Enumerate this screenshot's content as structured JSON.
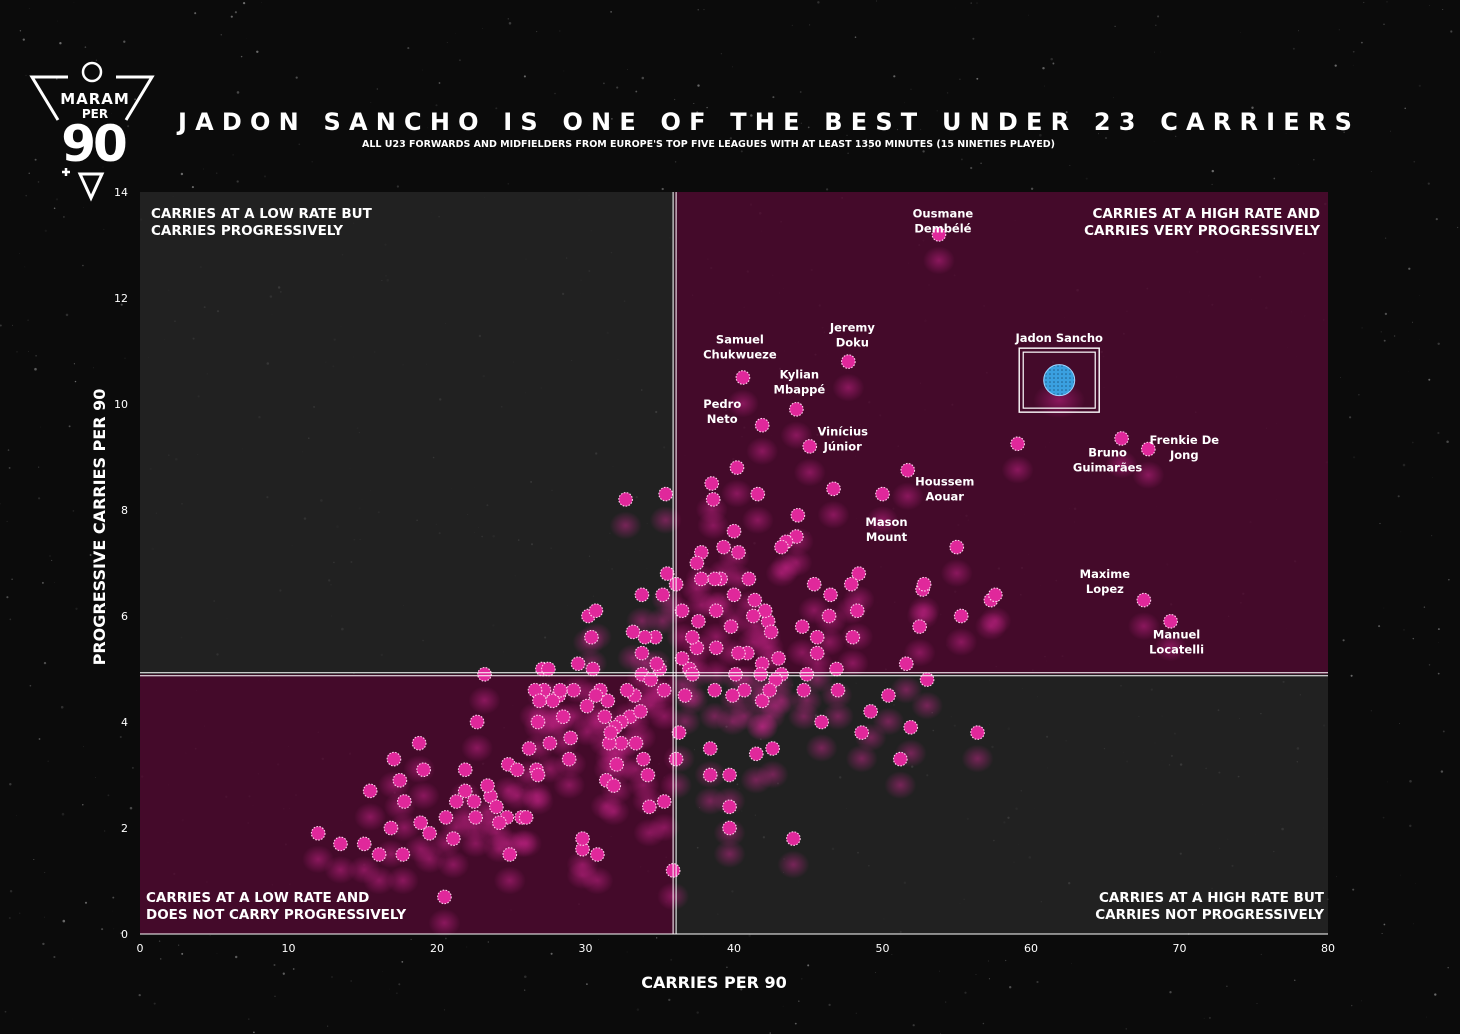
{
  "header": {
    "title": "JADON SANCHO IS ONE OF THE BEST UNDER 23 CARRIERS",
    "subtitle": "ALL U23 FORWARDS AND MIDFIELDERS FROM EUROPE'S TOP FIVE LEAGUES WITH AT LEAST 1350 MINUTES (15 NINETIES PLAYED)"
  },
  "logo": {
    "line1": "MARAM",
    "line2": "PER",
    "line3": "90"
  },
  "colors": {
    "background": "#0b0b0b",
    "quadrant_magenta": "#4a0a2e",
    "quadrant_grey": "#2a2a2a",
    "point_fill": "#e0289b",
    "highlight_fill": "#3aa0e0"
  },
  "chart_data": {
    "type": "scatter",
    "xlabel": "CARRIES PER 90",
    "ylabel": "PROGRESSIVE CARRIES PER 90",
    "xlim": [
      0,
      80
    ],
    "ylim": [
      0,
      14
    ],
    "xticks": [
      0,
      10,
      20,
      30,
      40,
      50,
      60,
      70,
      80
    ],
    "yticks": [
      0,
      2,
      4,
      6,
      8,
      10,
      12,
      14
    ],
    "reference_lines": {
      "x": 36,
      "y": 4.9
    },
    "grid": false,
    "quadrant_labels": {
      "top_left": [
        "CARRIES AT A LOW RATE BUT",
        "CARRIES PROGRESSIVELY"
      ],
      "top_right": [
        "CARRIES AT A HIGH RATE AND",
        "CARRIES VERY  PROGRESSIVELY"
      ],
      "bottom_left": [
        "CARRIES AT A LOW RATE AND",
        "DOES NOT CARRY PROGRESSIVELY"
      ],
      "bottom_right": [
        "CARRIES AT A HIGH RATE BUT",
        "CARRIES NOT PROGRESSIVELY"
      ]
    },
    "highlight": {
      "name": "Jadon Sancho",
      "x": 61.9,
      "y": 10.45
    },
    "labeled_points": [
      {
        "lines": [
          "Ousmane",
          "Dembélé"
        ],
        "x": 53.8,
        "y": 13.2
      },
      {
        "lines": [
          "Samuel",
          "Chukwueze"
        ],
        "x": 40.6,
        "y": 10.5
      },
      {
        "lines": [
          "Jeremy",
          "Doku"
        ],
        "x": 47.7,
        "y": 10.8
      },
      {
        "lines": [
          "Kylian",
          "Mbappé"
        ],
        "x": 44.2,
        "y": 9.9
      },
      {
        "lines": [
          "Pedro",
          "Neto"
        ],
        "x": 41.9,
        "y": 9.6
      },
      {
        "lines": [
          "Vinícius",
          "Júnior"
        ],
        "x": 45.1,
        "y": 9.2
      },
      {
        "lines": [
          "Frenkie De",
          "Jong"
        ],
        "x": 67.9,
        "y": 9.15
      },
      {
        "lines": [
          "Bruno",
          "Guimarães"
        ],
        "x": 66.1,
        "y": 9.35
      },
      {
        "lines": [
          "Houssem",
          "Aouar"
        ],
        "x": 51.7,
        "y": 8.75
      },
      {
        "lines": [
          "Mason",
          "Mount"
        ],
        "x": 50.0,
        "y": 8.3
      },
      {
        "lines": [
          "Maxime",
          "Lopez"
        ],
        "x": 67.6,
        "y": 6.3
      },
      {
        "lines": [
          "Manuel",
          "Locatelli"
        ],
        "x": 69.4,
        "y": 5.9
      }
    ],
    "points": [
      [
        59.1,
        9.25
      ],
      [
        56.4,
        3.8
      ],
      [
        57.3,
        6.3
      ],
      [
        57.6,
        6.4
      ],
      [
        55.0,
        7.3
      ],
      [
        55.3,
        6.0
      ],
      [
        53.0,
        4.8
      ],
      [
        52.5,
        5.8
      ],
      [
        52.7,
        6.5
      ],
      [
        51.6,
        5.1
      ],
      [
        51.2,
        3.3
      ],
      [
        51.9,
        3.9
      ],
      [
        52.8,
        6.6
      ],
      [
        50.4,
        4.5
      ],
      [
        49.2,
        4.2
      ],
      [
        48.0,
        5.6
      ],
      [
        48.4,
        6.8
      ],
      [
        48.3,
        6.1
      ],
      [
        47.9,
        6.6
      ],
      [
        48.6,
        3.8
      ],
      [
        47.0,
        4.6
      ],
      [
        46.9,
        5.0
      ],
      [
        46.7,
        8.4
      ],
      [
        46.5,
        6.4
      ],
      [
        46.4,
        6.0
      ],
      [
        45.4,
        6.6
      ],
      [
        45.6,
        5.6
      ],
      [
        45.6,
        5.3
      ],
      [
        45.9,
        4.0
      ],
      [
        44.9,
        4.9
      ],
      [
        44.7,
        4.6
      ],
      [
        44.6,
        5.8
      ],
      [
        44.3,
        7.9
      ],
      [
        44.2,
        7.5
      ],
      [
        43.5,
        7.4
      ],
      [
        43.2,
        7.3
      ],
      [
        43.2,
        4.9
      ],
      [
        43.0,
        5.2
      ],
      [
        42.8,
        4.8
      ],
      [
        42.6,
        3.5
      ],
      [
        42.3,
        5.9
      ],
      [
        42.1,
        6.1
      ],
      [
        42.5,
        5.7
      ],
      [
        41.9,
        5.1
      ],
      [
        41.8,
        4.9
      ],
      [
        41.9,
        4.4
      ],
      [
        41.6,
        8.3
      ],
      [
        41.3,
        6.0
      ],
      [
        41.4,
        6.3
      ],
      [
        41.5,
        3.4
      ],
      [
        41.0,
        6.7
      ],
      [
        40.9,
        5.3
      ],
      [
        40.7,
        4.6
      ],
      [
        40.0,
        7.6
      ],
      [
        40.0,
        6.4
      ],
      [
        40.3,
        5.3
      ],
      [
        40.1,
        4.9
      ],
      [
        39.8,
        5.8
      ],
      [
        39.9,
        4.5
      ],
      [
        39.7,
        3.0
      ],
      [
        39.7,
        2.4
      ],
      [
        40.3,
        7.2
      ],
      [
        40.2,
        8.8
      ],
      [
        39.3,
        7.3
      ],
      [
        39.1,
        6.7
      ],
      [
        38.7,
        6.7
      ],
      [
        38.8,
        6.1
      ],
      [
        38.8,
        5.4
      ],
      [
        38.7,
        4.6
      ],
      [
        38.4,
        3.0
      ],
      [
        38.4,
        3.5
      ],
      [
        38.6,
        8.2
      ],
      [
        38.5,
        8.5
      ],
      [
        37.8,
        6.7
      ],
      [
        37.8,
        7.2
      ],
      [
        37.5,
        7.0
      ],
      [
        37.6,
        5.9
      ],
      [
        37.5,
        5.4
      ],
      [
        37.2,
        5.6
      ],
      [
        37.0,
        5.0
      ],
      [
        37.2,
        4.9
      ],
      [
        36.7,
        4.5
      ],
      [
        36.5,
        5.2
      ],
      [
        36.1,
        6.6
      ],
      [
        36.5,
        6.1
      ],
      [
        36.3,
        3.8
      ],
      [
        36.1,
        3.3
      ],
      [
        35.9,
        1.2
      ],
      [
        35.3,
        4.6
      ],
      [
        35.0,
        5.0
      ],
      [
        35.2,
        6.4
      ],
      [
        35.5,
        6.8
      ],
      [
        34.7,
        5.6
      ],
      [
        34.8,
        5.1
      ],
      [
        35.4,
        8.3
      ],
      [
        33.8,
        4.9
      ],
      [
        33.8,
        5.3
      ],
      [
        34.0,
        5.6
      ],
      [
        33.8,
        6.4
      ],
      [
        33.2,
        5.7
      ],
      [
        33.3,
        4.5
      ],
      [
        33.0,
        4.1
      ],
      [
        33.7,
        4.2
      ],
      [
        34.4,
        4.8
      ],
      [
        33.4,
        3.6
      ],
      [
        32.8,
        4.6
      ],
      [
        33.9,
        3.3
      ],
      [
        32.4,
        4.0
      ],
      [
        32.0,
        3.9
      ],
      [
        32.4,
        3.6
      ],
      [
        32.1,
        3.2
      ],
      [
        31.6,
        3.6
      ],
      [
        31.4,
        2.9
      ],
      [
        31.7,
        3.8
      ],
      [
        31.5,
        4.4
      ],
      [
        31.0,
        4.6
      ],
      [
        31.3,
        4.1
      ],
      [
        30.7,
        4.5
      ],
      [
        30.5,
        5.0
      ],
      [
        30.1,
        4.3
      ],
      [
        30.4,
        5.6
      ],
      [
        30.2,
        6.0
      ],
      [
        29.5,
        5.1
      ],
      [
        29.2,
        4.6
      ],
      [
        28.5,
        4.1
      ],
      [
        28.2,
        4.5
      ],
      [
        27.8,
        4.4
      ],
      [
        27.2,
        4.6
      ],
      [
        27.1,
        5.0
      ],
      [
        26.6,
        4.6
      ],
      [
        26.8,
        4.0
      ],
      [
        26.9,
        4.4
      ],
      [
        27.6,
        3.6
      ],
      [
        26.7,
        3.1
      ],
      [
        26.2,
        3.5
      ],
      [
        25.7,
        2.2
      ],
      [
        24.8,
        3.2
      ],
      [
        24.7,
        2.2
      ],
      [
        24.9,
        1.5
      ],
      [
        24.2,
        2.1
      ],
      [
        23.6,
        2.6
      ],
      [
        23.4,
        2.8
      ],
      [
        22.6,
        2.2
      ],
      [
        22.7,
        4.0
      ],
      [
        23.2,
        4.9
      ],
      [
        21.9,
        2.7
      ],
      [
        21.3,
        2.5
      ],
      [
        21.1,
        1.8
      ],
      [
        20.6,
        2.2
      ],
      [
        20.5,
        0.7
      ],
      [
        19.5,
        1.9
      ],
      [
        19.1,
        3.1
      ],
      [
        18.9,
        2.1
      ],
      [
        18.8,
        3.6
      ],
      [
        17.8,
        2.5
      ],
      [
        17.5,
        2.9
      ],
      [
        17.7,
        1.5
      ],
      [
        17.1,
        3.3
      ],
      [
        16.9,
        2.0
      ],
      [
        16.1,
        1.5
      ],
      [
        15.5,
        2.7
      ],
      [
        15.1,
        1.7
      ],
      [
        13.5,
        1.7
      ],
      [
        12.0,
        1.9
      ],
      [
        26.0,
        2.2
      ],
      [
        26.8,
        3.0
      ],
      [
        28.9,
        3.3
      ],
      [
        29.0,
        3.7
      ],
      [
        29.8,
        1.6
      ],
      [
        30.8,
        1.5
      ],
      [
        34.3,
        2.4
      ],
      [
        34.2,
        3.0
      ],
      [
        35.3,
        2.5
      ],
      [
        39.7,
        2.0
      ],
      [
        44.0,
        1.8
      ],
      [
        41.9,
        4.4
      ],
      [
        42.4,
        4.6
      ],
      [
        31.9,
        2.8
      ],
      [
        27.5,
        5.0
      ],
      [
        29.8,
        1.8
      ],
      [
        28.3,
        4.6
      ],
      [
        25.4,
        3.1
      ],
      [
        21.9,
        3.1
      ],
      [
        22.5,
        2.5
      ],
      [
        24.0,
        2.4
      ],
      [
        32.7,
        8.2
      ],
      [
        30.7,
        6.1
      ]
    ]
  }
}
